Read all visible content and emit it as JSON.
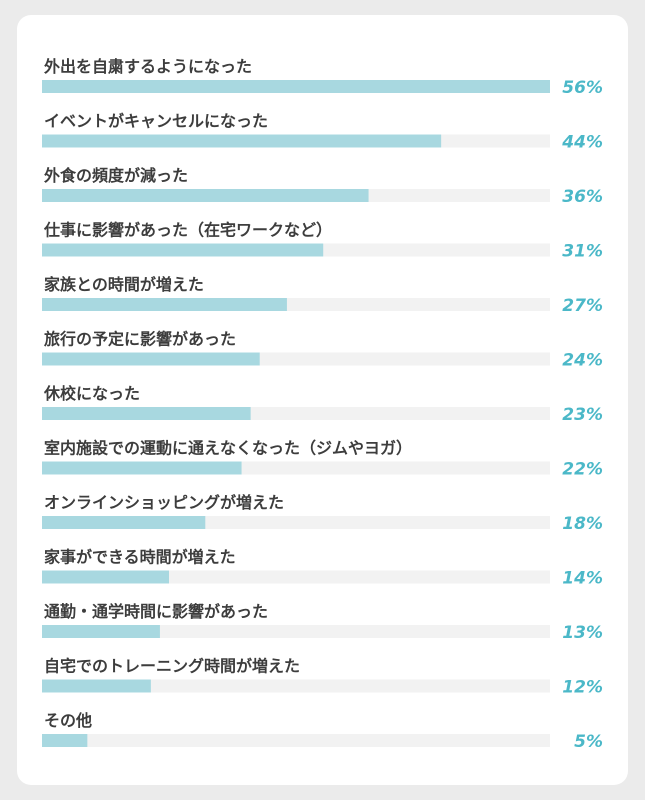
{
  "chart_data": {
    "type": "bar",
    "orientation": "horizontal",
    "categories": [
      "外出を自粛するようになった",
      "イベントがキャンセルになった",
      "外食の頻度が減った",
      "仕事に影響があった（在宅ワークなど）",
      "家族との時間が増えた",
      "旅行の予定に影響があった",
      "休校になった",
      "室内施設での運動に通えなくなった（ジムやヨガ）",
      "オンラインショッピングが増えた",
      "家事ができる時間が増えた",
      "通勤・通学時間に影響があった",
      "自宅でのトレーニング時間が増えた",
      "その他"
    ],
    "values": [
      56,
      44,
      36,
      31,
      27,
      24,
      23,
      22,
      18,
      14,
      13,
      12,
      5
    ],
    "value_labels": [
      "56%",
      "44%",
      "36%",
      "31%",
      "27%",
      "24%",
      "23%",
      "22%",
      "18%",
      "14%",
      "13%",
      "12%",
      "5%"
    ],
    "unit": "%",
    "xlim": [
      0,
      56
    ],
    "grid": false,
    "colors": {
      "bar": "#a8d8e0",
      "track": "#f2f2f2",
      "value_text": "#4bb8c8",
      "label_text": "#3d3d3d",
      "card": "#ffffff",
      "background": "#ebebeb"
    }
  }
}
